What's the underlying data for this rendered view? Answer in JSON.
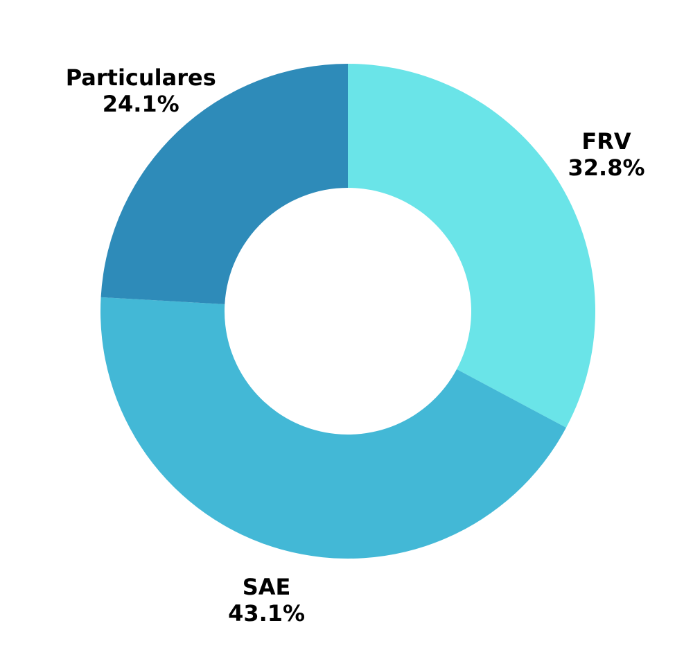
{
  "chart_data": {
    "type": "donut",
    "categories": [
      "FRV",
      "SAE",
      "Particulares"
    ],
    "values": [
      32.8,
      43.1,
      24.1
    ],
    "value_labels": [
      "32.8%",
      "43.1%",
      "24.1%"
    ],
    "colors": [
      "#6ae4e8",
      "#43b8d6",
      "#2e8bb9"
    ]
  }
}
